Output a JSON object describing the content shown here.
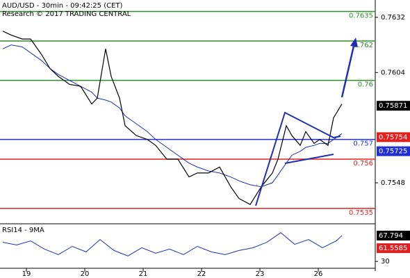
{
  "chart_data": [
    {
      "type": "line",
      "title": "AUD/USD - 30min - 09:42:25 (CET)",
      "subtitle": "Research © 2017 TRADING CENTRAL",
      "x": [
        1,
        4,
        8,
        11,
        15,
        18,
        21,
        25,
        29,
        33,
        35,
        38,
        40,
        43,
        45,
        49,
        53,
        56,
        60,
        64,
        68,
        71,
        75,
        79,
        83,
        86,
        90,
        94,
        98,
        100,
        103,
        105,
        108,
        110,
        113,
        115,
        118,
        120,
        123
      ],
      "values": [
        0.7625,
        0.7623,
        0.7621,
        0.7621,
        0.7613,
        0.7606,
        0.7602,
        0.7598,
        0.7597,
        0.7588,
        0.7591,
        0.7616,
        0.7602,
        0.7591,
        0.7577,
        0.7572,
        0.757,
        0.7567,
        0.756,
        0.756,
        0.7551,
        0.7553,
        0.7553,
        0.7556,
        0.7546,
        0.754,
        0.7537,
        0.7546,
        0.7553,
        0.756,
        0.7577,
        0.7572,
        0.7567,
        0.7574,
        0.7568,
        0.757,
        0.7567,
        0.7581,
        0.7588
      ],
      "color": "#000000",
      "ma": [
        0.7616,
        0.7618,
        0.7617,
        0.7614,
        0.761,
        0.7606,
        0.7603,
        0.76,
        0.7597,
        0.7594,
        0.7591,
        0.759,
        0.7589,
        0.7586,
        0.7582,
        0.7578,
        0.7574,
        0.757,
        0.7566,
        0.7562,
        0.7558,
        0.7556,
        0.7554,
        0.7553,
        0.7551,
        0.7549,
        0.7547,
        0.7546,
        0.7548,
        0.7552,
        0.7558,
        0.7562,
        0.7564,
        0.7566,
        0.7567,
        0.7568,
        0.7568,
        0.757,
        0.7573
      ],
      "ma_color": "#1f2fb0",
      "xlim": [
        0,
        135
      ],
      "xticks": [
        {
          "value": 9.5,
          "label": "19"
        },
        {
          "value": 30.5,
          "label": "20"
        },
        {
          "value": 51.5,
          "label": "21"
        },
        {
          "value": 72.5,
          "label": "22"
        },
        {
          "value": 93.5,
          "label": "23"
        },
        {
          "value": 114.5,
          "label": "26"
        }
      ],
      "ylim": [
        0.75279,
        0.76408
      ],
      "yticks": [
        0.7632,
        0.7604,
        0.7548
      ],
      "levels": [
        {
          "value": 0.7635,
          "color": "#2e8b2e"
        },
        {
          "value": 0.762,
          "color": "#2e8b2e"
        },
        {
          "value": 0.76,
          "color": "#2e8b2e"
        },
        {
          "value": 0.757,
          "color": "#1f2fd0"
        },
        {
          "value": 0.756,
          "color": "#e02020"
        },
        {
          "value": 0.7535,
          "color": "#e02020"
        }
      ],
      "price_tags": [
        {
          "value": 0.75871,
          "color": "#000000"
        },
        {
          "value": 0.75754,
          "color": "#e02020"
        },
        {
          "value": 0.75725,
          "color": "#1f2fd0"
        }
      ]
    },
    {
      "type": "line",
      "title": "RSI14 - 9MA",
      "x": [
        1,
        6,
        11,
        16,
        21,
        26,
        31,
        36,
        41,
        46,
        51,
        56,
        61,
        66,
        71,
        76,
        81,
        86,
        91,
        96,
        101,
        106,
        111,
        116,
        121,
        123
      ],
      "values": [
        58,
        54,
        60,
        48,
        40,
        52,
        44,
        62,
        46,
        38,
        50,
        42,
        48,
        40,
        52,
        44,
        40,
        46,
        50,
        58,
        72,
        55,
        62,
        50,
        60,
        67.794
      ],
      "color": "#1f2fb0",
      "ylim": [
        20,
        85
      ],
      "yticks": [
        30
      ],
      "price_tags": [
        {
          "value": 67.794,
          "color": "#000000"
        },
        {
          "value": 61.5585,
          "color": "#e02020"
        }
      ]
    }
  ]
}
